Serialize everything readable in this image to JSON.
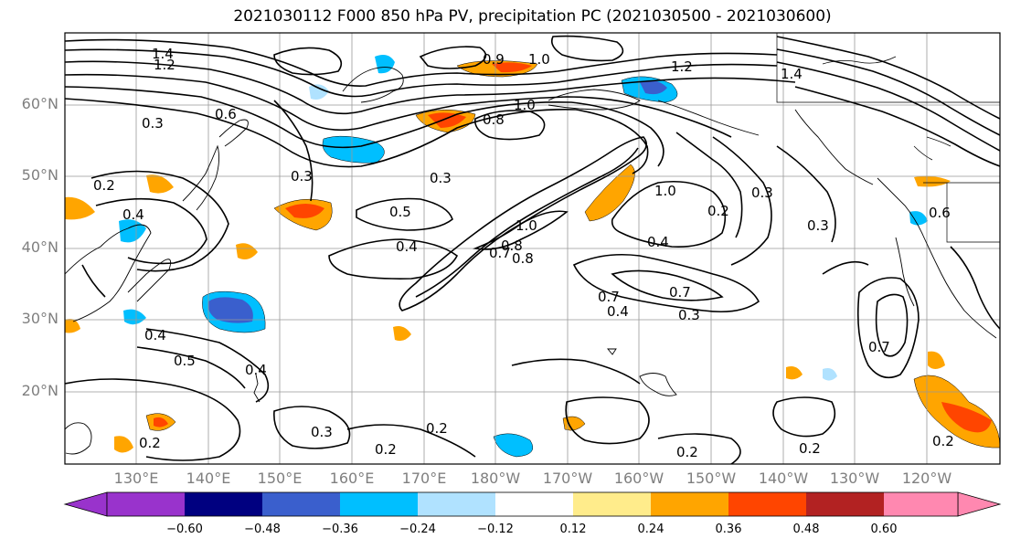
{
  "title": "2021030112 F000 850 hPa PV, precipitation PC (2021030500 - 2021030600)",
  "lat_labels": [
    "60°N",
    "50°N",
    "40°N",
    "30°N",
    "20°N"
  ],
  "lon_labels": [
    "130°E",
    "140°E",
    "150°E",
    "160°E",
    "170°E",
    "180°W",
    "170°W",
    "160°W",
    "150°W",
    "140°W",
    "130°W",
    "120°W"
  ],
  "colorbar": {
    "ticks": [
      "−0.60",
      "−0.48",
      "−0.36",
      "−0.24",
      "−0.12",
      "0.12",
      "0.24",
      "0.36",
      "0.48",
      "0.60"
    ],
    "colors": [
      "#9933cc",
      "#000080",
      "#3a5fcd",
      "#00bfff",
      "#b0e2ff",
      "#ffffff",
      "#ffec8b",
      "#ffa500",
      "#ff4500",
      "#b22222",
      "#ff88b0"
    ]
  },
  "contour_labels": [
    "1.4",
    "1.2",
    "0.9",
    "1.0",
    "1.2",
    "1.4",
    "0.8",
    "1.0",
    "0.3",
    "0.6",
    "0.2",
    "0.3",
    "0.4",
    "0.3",
    "0.5",
    "0.4",
    "1.0",
    "0.8",
    "0.7",
    "0.8",
    "1.0",
    "0.2",
    "0.3",
    "0.4",
    "0.7",
    "0.7",
    "0.4",
    "0.3",
    "0.3",
    "0.6",
    "0.4",
    "0.5",
    "0.4",
    "0.2",
    "0.3",
    "0.2",
    "0.2",
    "0.2",
    "0.2",
    "0.7",
    "0.2"
  ]
}
